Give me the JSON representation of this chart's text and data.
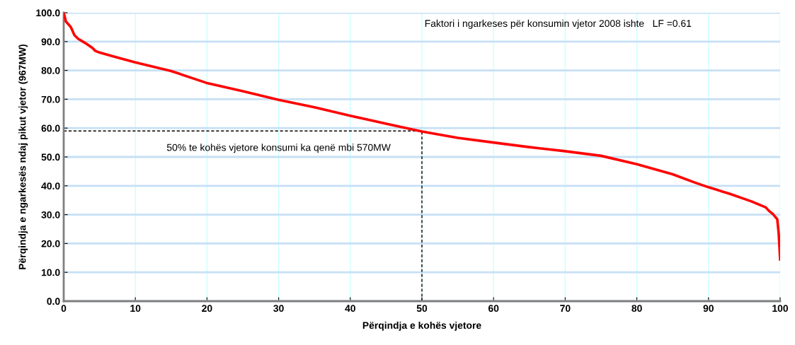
{
  "chart_data": {
    "type": "line",
    "xlabel": "Përqindja e kohës vjetore",
    "ylabel": "Përqindja e ngarkesës ndaj pikut vjetor (967MW)",
    "annotations": [
      "Faktori i ngarkeses për konsumin vjetor 2008 ishte   LF =0.61",
      "50% te kohës vjetore konsumi ka qenë mbi 570MW"
    ],
    "series": [
      {
        "color": "#ff0000",
        "line_style": "solid",
        "x": [
          0,
          0.3,
          1,
          1.5,
          2,
          3,
          4,
          4.4,
          5,
          7,
          10,
          15,
          19.9,
          25,
          30,
          35,
          40,
          45,
          50,
          55,
          60,
          65,
          70,
          75,
          80,
          85,
          88,
          90,
          93,
          96,
          98,
          98.4,
          99,
          99.6,
          99.8,
          100
        ],
        "values": [
          100,
          97,
          95,
          92.2,
          91,
          89.5,
          87.8,
          86.8,
          86.2,
          84.8,
          82.8,
          79.8,
          75.7,
          72.8,
          69.8,
          67.2,
          64.3,
          61.5,
          58.8,
          56.6,
          55,
          53.4,
          52,
          50.4,
          47.5,
          44,
          41.2,
          39.5,
          37.2,
          34.6,
          32.5,
          31.4,
          30.2,
          28.4,
          23.5,
          14.5
        ]
      },
      {
        "type": "line",
        "color": "#000000",
        "line_style": "dashed",
        "x": [
          0,
          50,
          50
        ],
        "values": [
          59,
          59,
          0
        ]
      }
    ],
    "xlim": [
      0,
      100
    ],
    "xticks": [
      0,
      10,
      20,
      30,
      40,
      50,
      60,
      70,
      80,
      90,
      100
    ],
    "ylim": [
      0,
      100
    ],
    "yticks": [
      {
        "value": 0,
        "label": "0.0"
      },
      {
        "value": 10,
        "label": "10.0"
      },
      {
        "value": 20,
        "label": "20.0"
      },
      {
        "value": 30,
        "label": "30.0"
      },
      {
        "value": 40,
        "label": "40.0"
      },
      {
        "value": 50,
        "label": "50.0"
      },
      {
        "value": 60,
        "label": "60.0"
      },
      {
        "value": 70,
        "label": "70.0"
      },
      {
        "value": 80,
        "label": "80.0"
      },
      {
        "value": 90,
        "label": "90.0"
      },
      {
        "value": 100,
        "label": "100.0"
      }
    ],
    "grid": true,
    "legend": false
  }
}
